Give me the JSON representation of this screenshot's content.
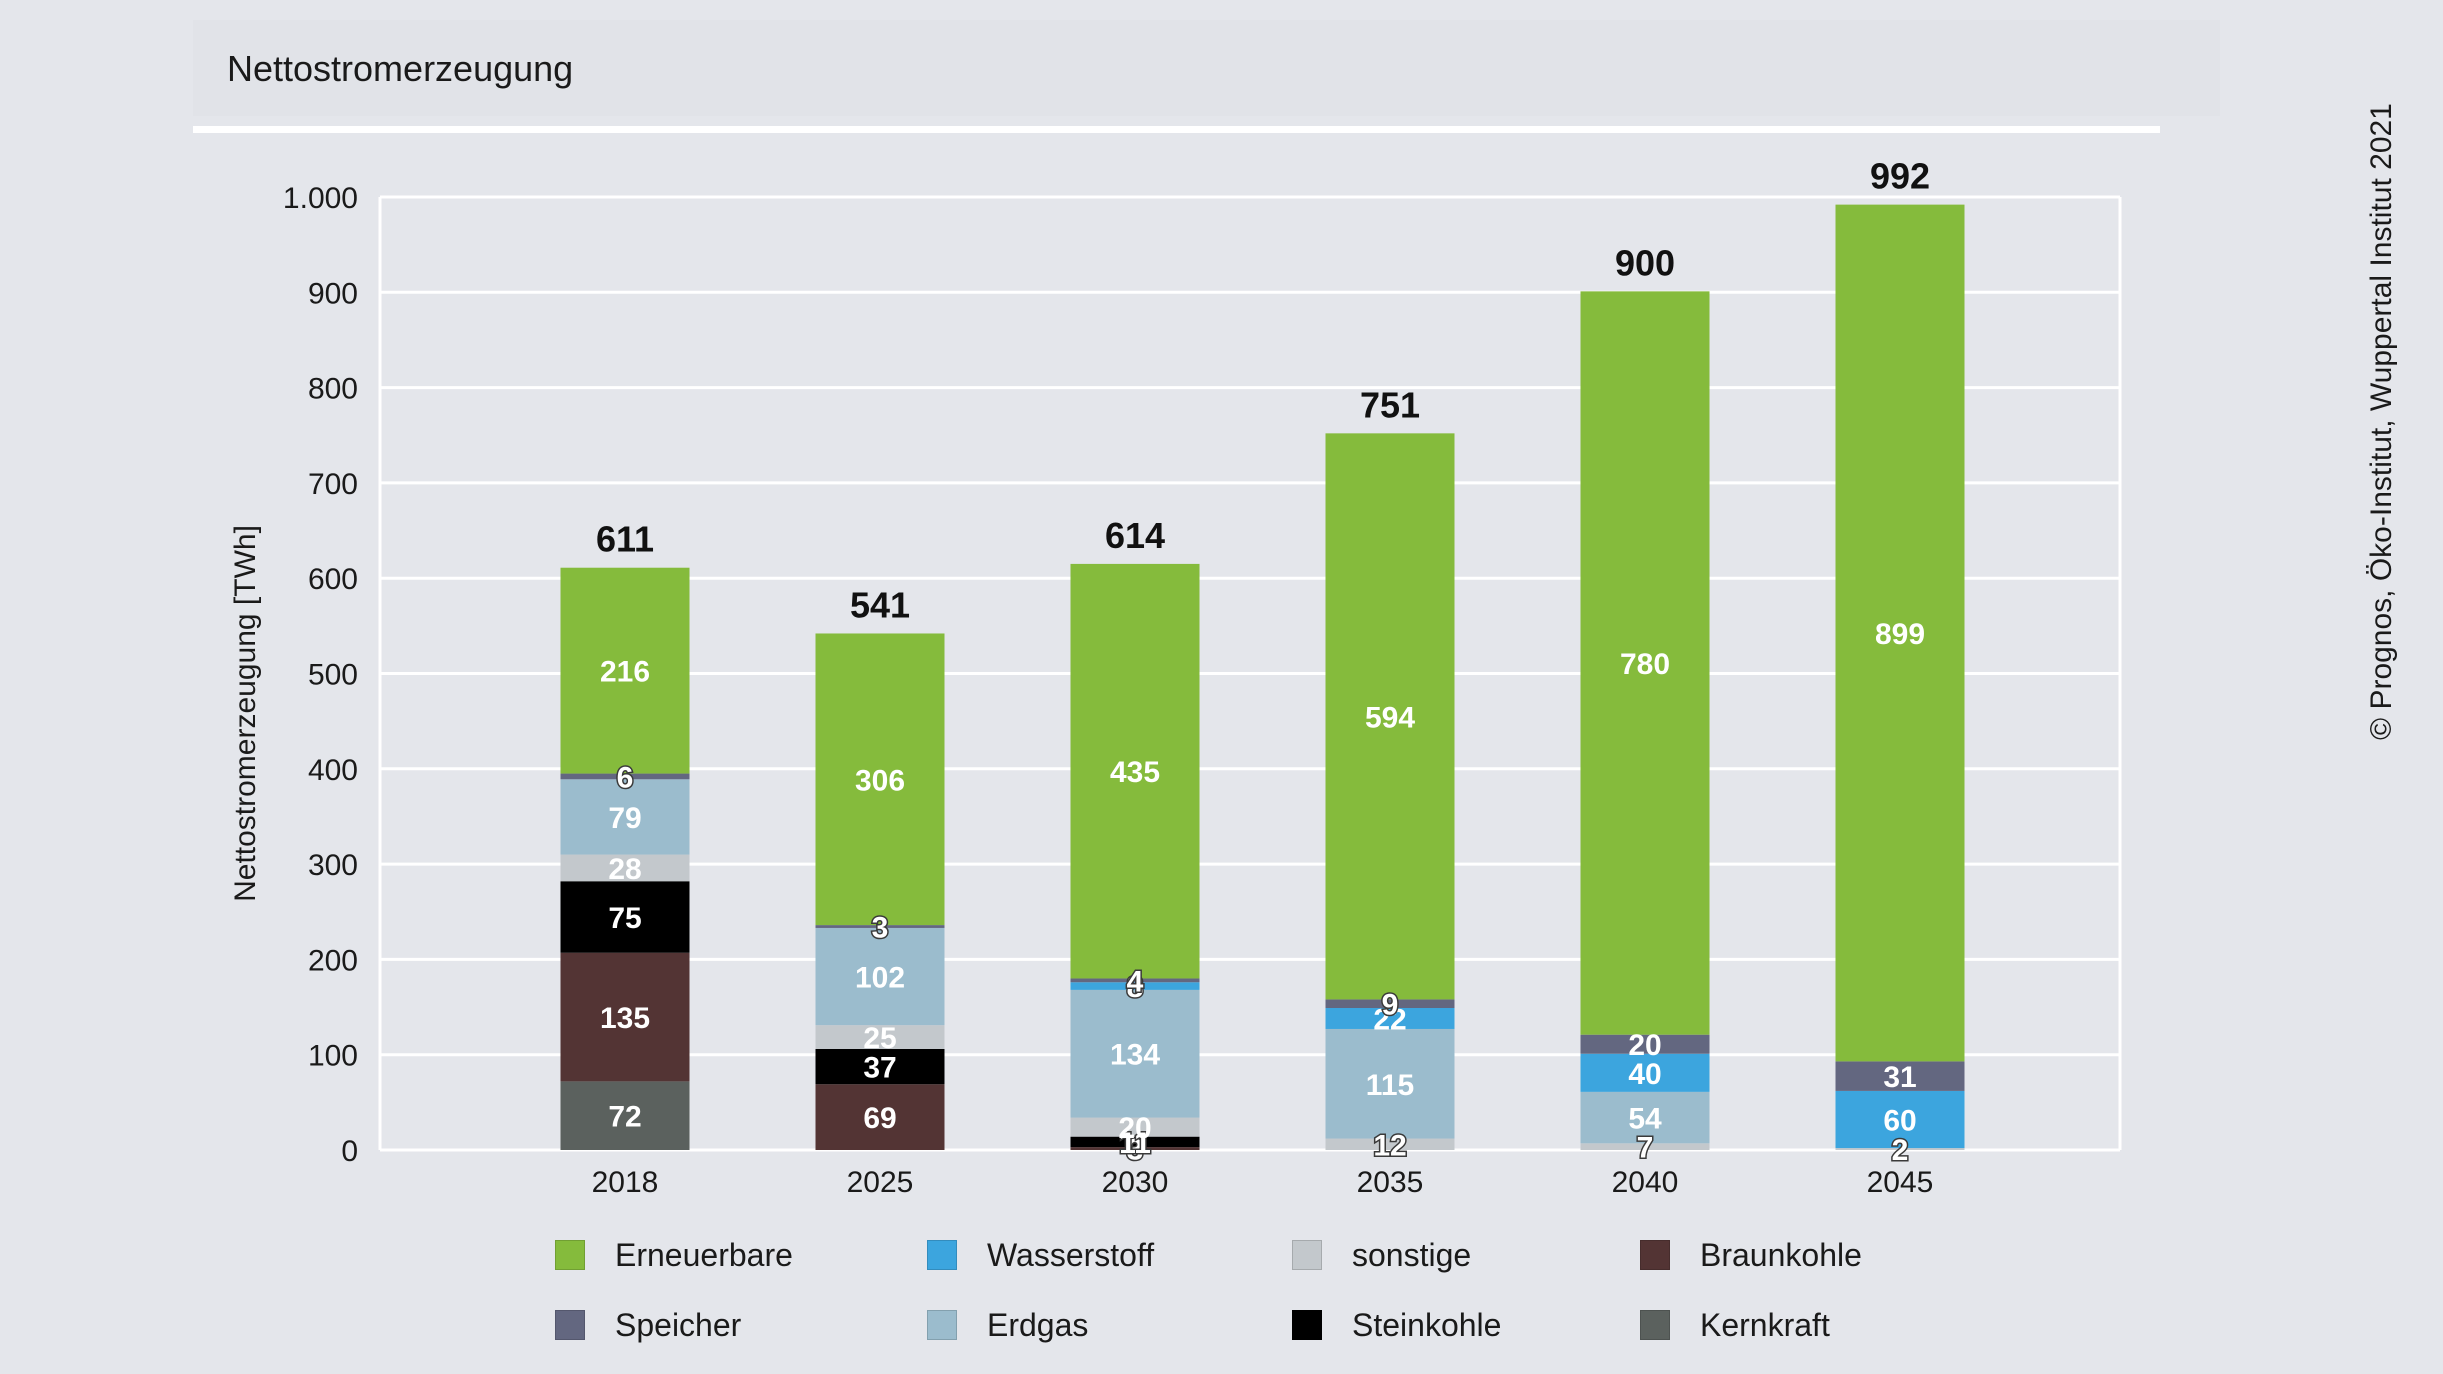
{
  "title": "Nettostromerzeugung",
  "copyright": "© Prognos, Öko-Institut, Wuppertal Institut 2021",
  "chart_data": {
    "type": "bar",
    "stacked": true,
    "ylabel": "Nettostromerzeugung [TWh]",
    "xlabel": "",
    "ylim": [
      0,
      1000
    ],
    "yticks": [
      0,
      100,
      200,
      300,
      400,
      500,
      600,
      700,
      800,
      900,
      1000
    ],
    "ytick_labels": [
      "0",
      "100",
      "200",
      "300",
      "400",
      "500",
      "600",
      "700",
      "800",
      "900",
      "1.000"
    ],
    "grid": true,
    "legend_position": "bottom",
    "categories": [
      "2018",
      "2025",
      "2030",
      "2035",
      "2040",
      "2045"
    ],
    "totals": [
      611,
      541,
      614,
      751,
      900,
      992
    ],
    "series": [
      {
        "name": "Kernkraft",
        "color": "#5b615e",
        "values": [
          72,
          0,
          0,
          0,
          0,
          0
        ]
      },
      {
        "name": "Braunkohle",
        "color": "#533434",
        "values": [
          135,
          69,
          3,
          0,
          0,
          0
        ]
      },
      {
        "name": "Steinkohle",
        "color": "#000000",
        "values": [
          75,
          37,
          11,
          0,
          0,
          0
        ]
      },
      {
        "name": "sonstige",
        "color": "#c3c8cc",
        "values": [
          28,
          25,
          20,
          12,
          7,
          2
        ]
      },
      {
        "name": "Erdgas",
        "color": "#9bbccd",
        "values": [
          79,
          102,
          134,
          115,
          54,
          0
        ]
      },
      {
        "name": "Wasserstoff",
        "color": "#3ca5de",
        "values": [
          0,
          0,
          8,
          22,
          40,
          60
        ]
      },
      {
        "name": "Speicher",
        "color": "#636780",
        "values": [
          6,
          3,
          4,
          9,
          20,
          31
        ]
      },
      {
        "name": "Erneuerbare",
        "color": "#85bb3c",
        "values": [
          216,
          306,
          435,
          594,
          780,
          899
        ]
      }
    ]
  },
  "legend": [
    {
      "label": "Erneuerbare",
      "color": "#85bb3c"
    },
    {
      "label": "Wasserstoff",
      "color": "#3ca5de"
    },
    {
      "label": "sonstige",
      "color": "#c3c8cc"
    },
    {
      "label": "Braunkohle",
      "color": "#533434"
    },
    {
      "label": "Speicher",
      "color": "#636780"
    },
    {
      "label": "Erdgas",
      "color": "#9bbccd"
    },
    {
      "label": "Steinkohle",
      "color": "#000000"
    },
    {
      "label": "Kernkraft",
      "color": "#5b615e"
    }
  ]
}
